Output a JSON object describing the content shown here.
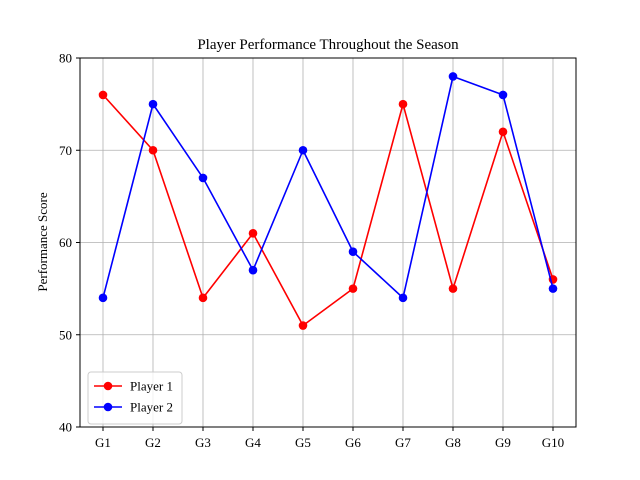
{
  "chart_data": {
    "type": "line",
    "title": "Player Performance Throughout the Season",
    "xlabel": "",
    "ylabel": "Performance Score",
    "categories": [
      "G1",
      "G2",
      "G3",
      "G4",
      "G5",
      "G6",
      "G7",
      "G8",
      "G9",
      "G10"
    ],
    "ylim": [
      40,
      80
    ],
    "yticks": [
      40,
      50,
      60,
      70,
      80
    ],
    "grid": true,
    "legend_position": "bottom-left",
    "series": [
      {
        "name": "Player 1",
        "color": "#ff0000",
        "marker": "circle",
        "values": [
          76,
          70,
          54,
          61,
          51,
          55,
          75,
          55,
          72,
          56
        ]
      },
      {
        "name": "Player 2",
        "color": "#0000ff",
        "marker": "circle",
        "values": [
          54,
          75,
          67,
          57,
          70,
          59,
          54,
          78,
          76,
          55
        ]
      }
    ]
  }
}
